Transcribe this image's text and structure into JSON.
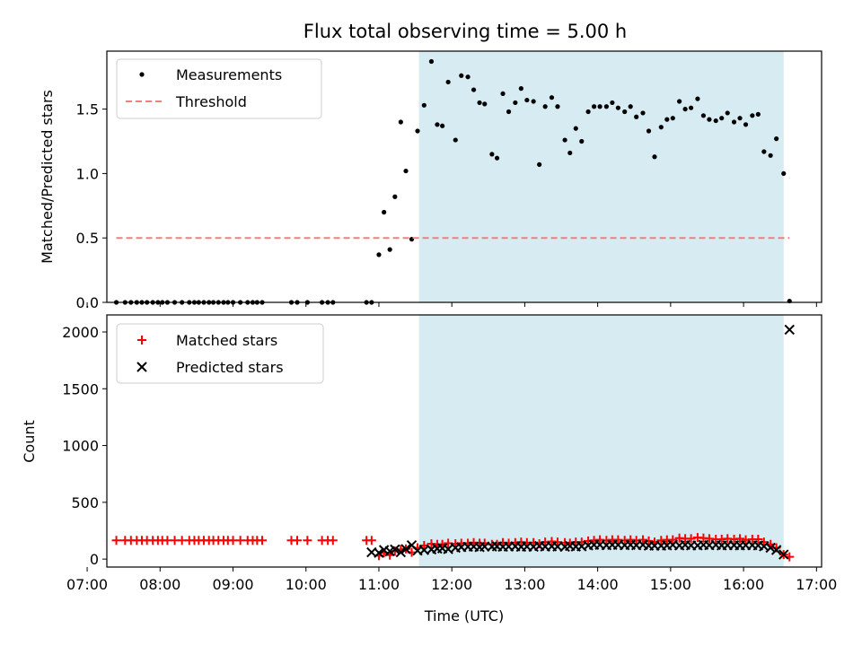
{
  "chart_data": [
    {
      "type": "scatter",
      "title": "Flux total observing time = 5.00 h",
      "xlabel": "",
      "ylabel": "Matched/Predicted stars",
      "xlim": [
        7.27,
        17.07
      ],
      "ylim": [
        0.0,
        1.95
      ],
      "yticks": [
        0.0,
        0.5,
        1.0,
        1.5
      ],
      "ytick_labels": [
        "0.0",
        "0.5",
        "1.0",
        "1.5"
      ],
      "shaded_span": {
        "x0": 11.55,
        "x1": 16.55,
        "color": "#add8e6"
      },
      "legend": {
        "position": "top-left",
        "entries": [
          "Measurements",
          "Threshold"
        ]
      },
      "series": [
        {
          "name": "Measurements",
          "color": "#000000",
          "marker": "dot",
          "x": [
            7.4,
            7.52,
            7.6,
            7.68,
            7.75,
            7.82,
            7.9,
            7.97,
            8.03,
            8.1,
            8.2,
            8.3,
            8.4,
            8.47,
            8.53,
            8.6,
            8.67,
            8.73,
            8.8,
            8.87,
            8.93,
            9.0,
            9.1,
            9.2,
            9.27,
            9.33,
            9.4,
            9.8,
            9.88,
            10.02,
            10.22,
            10.3,
            10.37,
            10.83,
            10.9,
            11.0,
            11.07,
            11.15,
            11.22,
            11.3,
            11.37,
            11.45,
            11.53,
            11.62,
            11.72,
            11.8,
            11.87,
            11.95,
            12.05,
            12.13,
            12.22,
            12.3,
            12.38,
            12.45,
            12.55,
            12.62,
            12.7,
            12.78,
            12.87,
            12.95,
            13.03,
            13.12,
            13.2,
            13.28,
            13.37,
            13.45,
            13.55,
            13.62,
            13.7,
            13.78,
            13.87,
            13.95,
            14.03,
            14.12,
            14.2,
            14.28,
            14.37,
            14.45,
            14.53,
            14.62,
            14.7,
            14.78,
            14.87,
            14.95,
            15.03,
            15.12,
            15.2,
            15.28,
            15.37,
            15.45,
            15.53,
            15.62,
            15.7,
            15.78,
            15.87,
            15.95,
            16.03,
            16.12,
            16.2,
            16.28,
            16.37,
            16.45,
            16.55,
            16.63
          ],
          "y": [
            0,
            0,
            0,
            0,
            0,
            0,
            0,
            0,
            0,
            0,
            0,
            0,
            0,
            0,
            0,
            0,
            0,
            0,
            0,
            0,
            0,
            0,
            0,
            0,
            0,
            0,
            0,
            0,
            0,
            0,
            0,
            0,
            0,
            0,
            0,
            0.37,
            0.7,
            0.41,
            0.82,
            1.4,
            1.02,
            0.49,
            1.33,
            1.53,
            1.87,
            1.38,
            1.37,
            1.71,
            1.26,
            1.76,
            1.75,
            1.65,
            1.55,
            1.54,
            1.15,
            1.12,
            1.62,
            1.48,
            1.55,
            1.66,
            1.57,
            1.56,
            1.07,
            1.52,
            1.59,
            1.52,
            1.26,
            1.16,
            1.35,
            1.25,
            1.48,
            1.52,
            1.52,
            1.52,
            1.55,
            1.51,
            1.48,
            1.52,
            1.44,
            1.47,
            1.33,
            1.13,
            1.36,
            1.42,
            1.43,
            1.56,
            1.5,
            1.51,
            1.58,
            1.45,
            1.42,
            1.41,
            1.43,
            1.47,
            1.4,
            1.43,
            1.38,
            1.45,
            1.46,
            1.17,
            1.14,
            1.27,
            1.0,
            0.01
          ]
        },
        {
          "name": "Threshold",
          "color": "#f08080",
          "style": "dashed",
          "x": [
            7.4,
            16.63
          ],
          "y": [
            0.5,
            0.5
          ]
        }
      ]
    },
    {
      "type": "scatter",
      "title": "",
      "xlabel": "Time (UTC)",
      "ylabel": "Count",
      "xlim": [
        7.27,
        17.07
      ],
      "ylim": [
        -70,
        2150
      ],
      "yticks": [
        0,
        500,
        1000,
        1500,
        2000
      ],
      "ytick_labels": [
        "0",
        "500",
        "1000",
        "1500",
        "2000"
      ],
      "xticks": [
        7,
        8,
        9,
        10,
        11,
        12,
        13,
        14,
        15,
        16,
        17
      ],
      "xtick_labels": [
        "07:00",
        "08:00",
        "09:00",
        "10:00",
        "11:00",
        "12:00",
        "13:00",
        "14:00",
        "15:00",
        "16:00",
        "17:00"
      ],
      "shaded_span": {
        "x0": 11.55,
        "x1": 16.55,
        "color": "#add8e6"
      },
      "legend": {
        "position": "top-left",
        "entries": [
          "Matched stars",
          "Predicted stars"
        ]
      },
      "series": [
        {
          "name": "Matched stars",
          "color": "#ff0000",
          "marker": "plus",
          "x": [
            7.4,
            7.52,
            7.6,
            7.68,
            7.75,
            7.82,
            7.9,
            7.97,
            8.03,
            8.1,
            8.2,
            8.3,
            8.4,
            8.47,
            8.53,
            8.6,
            8.67,
            8.73,
            8.8,
            8.87,
            8.93,
            9.0,
            9.1,
            9.2,
            9.27,
            9.33,
            9.4,
            9.8,
            9.88,
            10.02,
            10.22,
            10.3,
            10.37,
            10.83,
            10.9,
            11.0,
            11.07,
            11.15,
            11.22,
            11.3,
            11.37,
            11.45,
            11.53,
            11.62,
            11.72,
            11.8,
            11.87,
            11.95,
            12.05,
            12.13,
            12.22,
            12.3,
            12.38,
            12.45,
            12.55,
            12.62,
            12.7,
            12.78,
            12.87,
            12.95,
            13.03,
            13.12,
            13.2,
            13.28,
            13.37,
            13.45,
            13.55,
            13.62,
            13.7,
            13.78,
            13.87,
            13.95,
            14.03,
            14.12,
            14.2,
            14.28,
            14.37,
            14.45,
            14.53,
            14.62,
            14.7,
            14.78,
            14.87,
            14.95,
            15.03,
            15.12,
            15.2,
            15.28,
            15.37,
            15.45,
            15.53,
            15.62,
            15.7,
            15.78,
            15.87,
            15.95,
            16.03,
            16.12,
            16.2,
            16.28,
            16.37,
            16.45,
            16.55,
            16.63
          ],
          "y": [
            165,
            165,
            165,
            165,
            165,
            165,
            165,
            165,
            165,
            165,
            165,
            165,
            165,
            165,
            165,
            165,
            165,
            165,
            165,
            165,
            165,
            165,
            165,
            165,
            165,
            165,
            165,
            165,
            165,
            165,
            165,
            165,
            165,
            165,
            165,
            30,
            55,
            35,
            70,
            85,
            90,
            60,
            100,
            120,
            135,
            130,
            130,
            140,
            135,
            140,
            140,
            145,
            140,
            140,
            130,
            130,
            145,
            140,
            145,
            150,
            145,
            145,
            135,
            150,
            155,
            150,
            145,
            140,
            150,
            150,
            160,
            165,
            170,
            165,
            170,
            170,
            165,
            170,
            165,
            170,
            160,
            150,
            165,
            170,
            170,
            185,
            180,
            180,
            190,
            185,
            180,
            175,
            175,
            180,
            175,
            180,
            170,
            175,
            175,
            150,
            130,
            100,
            40,
            20
          ]
        },
        {
          "name": "Predicted stars",
          "color": "#000000",
          "marker": "x",
          "x": [
            10.9,
            11.0,
            11.07,
            11.15,
            11.22,
            11.3,
            11.37,
            11.45,
            11.53,
            11.62,
            11.72,
            11.8,
            11.87,
            11.95,
            12.05,
            12.13,
            12.22,
            12.3,
            12.38,
            12.45,
            12.55,
            12.62,
            12.7,
            12.78,
            12.87,
            12.95,
            13.03,
            13.12,
            13.2,
            13.28,
            13.37,
            13.45,
            13.55,
            13.62,
            13.7,
            13.78,
            13.87,
            13.95,
            14.03,
            14.12,
            14.2,
            14.28,
            14.37,
            14.45,
            14.53,
            14.62,
            14.7,
            14.78,
            14.87,
            14.95,
            15.03,
            15.12,
            15.2,
            15.28,
            15.37,
            15.45,
            15.53,
            15.62,
            15.7,
            15.78,
            15.87,
            15.95,
            16.03,
            16.12,
            16.2,
            16.28,
            16.37,
            16.45,
            16.55,
            16.63
          ],
          "y": [
            60,
            55,
            80,
            70,
            85,
            60,
            88,
            122,
            75,
            80,
            85,
            92,
            95,
            88,
            100,
            105,
            108,
            110,
            105,
            110,
            110,
            112,
            108,
            110,
            112,
            108,
            110,
            108,
            115,
            110,
            112,
            110,
            108,
            115,
            110,
            112,
            120,
            125,
            125,
            122,
            125,
            125,
            122,
            125,
            122,
            125,
            118,
            118,
            118,
            120,
            125,
            120,
            125,
            120,
            120,
            125,
            122,
            125,
            120,
            122,
            122,
            120,
            122,
            122,
            120,
            112,
            100,
            80,
            40,
            2020
          ]
        }
      ]
    }
  ]
}
